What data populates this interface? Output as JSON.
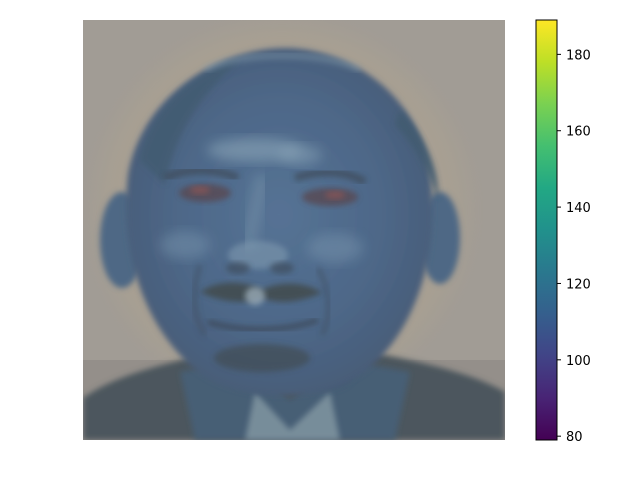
{
  "chart_data": {
    "type": "heatmap",
    "description_in_image": "",
    "colormap": "viridis",
    "colorbar": {
      "vmin": 79,
      "vmax": 189,
      "ticks": [
        80,
        100,
        120,
        140,
        160,
        180
      ],
      "tick_labels": [
        "80",
        "100",
        "120",
        "140",
        "160",
        "180"
      ]
    },
    "axes_visible": false,
    "colors": {
      "background_gray": "#a39e96",
      "face_blue": "#3d5f86",
      "dark_shadow": "#2e3e4c",
      "highlight": "#7f9fb3"
    }
  }
}
